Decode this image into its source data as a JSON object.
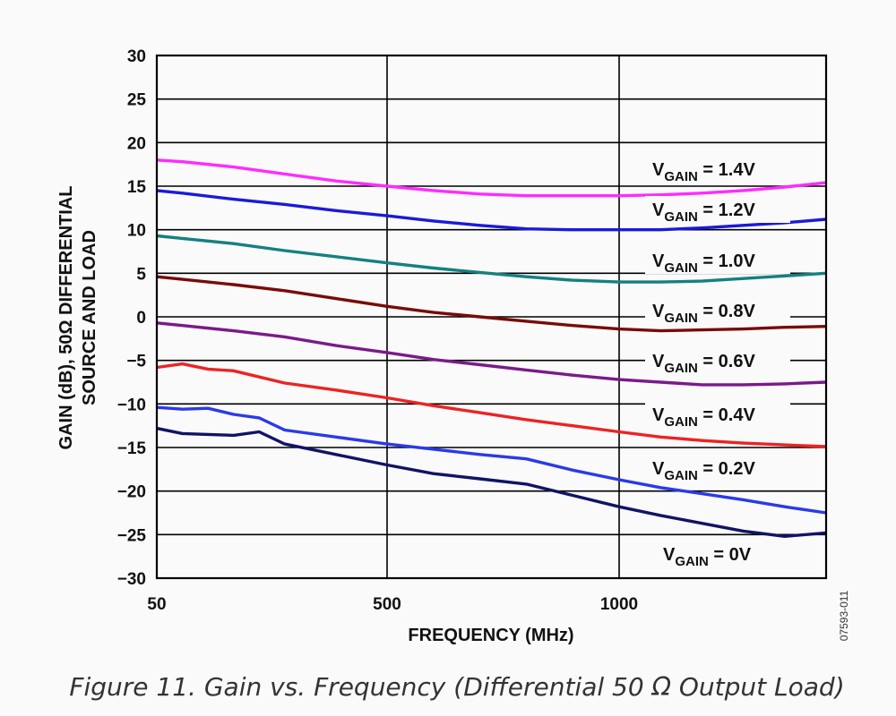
{
  "figure": {
    "caption": "Figure 11. Gain vs. Frequency (Differential 50 Ω  Output Load)",
    "doc_id": "07593-011"
  },
  "colors": {
    "background": "#fafafa",
    "grid": "#000000",
    "text": "#111111"
  },
  "chart_data": {
    "type": "line",
    "title": "",
    "xlabel": "FREQUENCY (MHz)",
    "ylabel_lines": [
      "GAIN (dB), 50Ω DIFFERENTIAL",
      "SOURCE AND LOAD"
    ],
    "xlim": [
      50,
      1500
    ],
    "ylim": [
      -30,
      30
    ],
    "x_ticks": [
      50,
      500,
      1000
    ],
    "y_ticks": [
      30,
      25,
      20,
      15,
      10,
      5,
      0,
      -5,
      -10,
      -15,
      -20,
      -25,
      -30
    ],
    "y_tick_labels": [
      "30",
      "25",
      "20",
      "15",
      "10",
      "5",
      "0",
      "−5",
      "−10",
      "−15",
      "−20",
      "−25",
      "−30"
    ],
    "grid": true,
    "legend": "inline labels on right",
    "series": [
      {
        "label_main": "V",
        "label_sub": "GAIN",
        "label_rest": " = 1.4V",
        "color": "#ff2bff",
        "x": [
          50,
          100,
          200,
          300,
          400,
          500,
          600,
          700,
          800,
          900,
          1000,
          1100,
          1200,
          1300,
          1400,
          1500
        ],
        "y": [
          18,
          17.8,
          17.2,
          16.4,
          15.6,
          15,
          14.5,
          14.1,
          13.9,
          13.9,
          13.9,
          14,
          14.2,
          14.5,
          14.9,
          15.4
        ]
      },
      {
        "label_main": "V",
        "label_sub": "GAIN",
        "label_rest": " = 1.2V",
        "color": "#1a1adb",
        "x": [
          50,
          100,
          200,
          300,
          400,
          500,
          600,
          700,
          800,
          900,
          1000,
          1100,
          1200,
          1300,
          1400,
          1500
        ],
        "y": [
          14.5,
          14.2,
          13.5,
          12.9,
          12.2,
          11.6,
          11,
          10.5,
          10.1,
          10,
          10,
          10,
          10.2,
          10.5,
          10.8,
          11.2
        ]
      },
      {
        "label_main": "V",
        "label_sub": "GAIN",
        "label_rest": " = 1.0V",
        "color": "#148080",
        "x": [
          50,
          100,
          200,
          300,
          400,
          500,
          600,
          700,
          800,
          900,
          1000,
          1100,
          1200,
          1300,
          1400,
          1500
        ],
        "y": [
          9.3,
          9,
          8.4,
          7.6,
          6.9,
          6.2,
          5.6,
          5.1,
          4.6,
          4.2,
          4,
          4,
          4.1,
          4.4,
          4.7,
          5
        ]
      },
      {
        "label_main": "V",
        "label_sub": "GAIN",
        "label_rest": " = 0.8V",
        "color": "#7a0a0a",
        "x": [
          50,
          100,
          200,
          300,
          400,
          500,
          600,
          700,
          800,
          900,
          1000,
          1100,
          1200,
          1300,
          1400,
          1500
        ],
        "y": [
          4.6,
          4.3,
          3.7,
          3,
          2.1,
          1.2,
          0.5,
          0,
          -0.5,
          -1,
          -1.4,
          -1.6,
          -1.5,
          -1.4,
          -1.2,
          -1.1
        ]
      },
      {
        "label_main": "V",
        "label_sub": "GAIN",
        "label_rest": " = 0.6V",
        "color": "#7a1a8a",
        "x": [
          50,
          100,
          200,
          300,
          400,
          500,
          600,
          700,
          800,
          900,
          1000,
          1100,
          1200,
          1300,
          1400,
          1500
        ],
        "y": [
          -0.7,
          -1,
          -1.6,
          -2.3,
          -3.3,
          -4.1,
          -4.9,
          -5.5,
          -6.1,
          -6.7,
          -7.2,
          -7.5,
          -7.8,
          -7.8,
          -7.7,
          -7.5
        ]
      },
      {
        "label_main": "V",
        "label_sub": "GAIN",
        "label_rest": " = 0.4V",
        "color": "#ee2222",
        "x": [
          50,
          100,
          150,
          200,
          300,
          400,
          500,
          600,
          700,
          800,
          900,
          1000,
          1100,
          1200,
          1300,
          1400,
          1500
        ],
        "y": [
          -5.8,
          -5.4,
          -6,
          -6.2,
          -7.6,
          -8.4,
          -9.3,
          -10.2,
          -11,
          -11.8,
          -12.5,
          -13.2,
          -13.8,
          -14.2,
          -14.5,
          -14.7,
          -14.9
        ]
      },
      {
        "label_main": "V",
        "label_sub": "GAIN",
        "label_rest": " = 0.2V",
        "color": "#2a3ae8",
        "x": [
          50,
          100,
          150,
          200,
          250,
          300,
          400,
          500,
          600,
          700,
          800,
          900,
          1000,
          1100,
          1200,
          1300,
          1400,
          1500
        ],
        "y": [
          -10.4,
          -10.6,
          -10.5,
          -11.2,
          -11.6,
          -13,
          -13.8,
          -14.6,
          -15.2,
          -15.8,
          -16.3,
          -17.6,
          -18.7,
          -19.6,
          -20.3,
          -21,
          -21.8,
          -22.5
        ]
      },
      {
        "label_main": "V",
        "label_sub": "GAIN",
        "label_rest": " = 0V",
        "color": "#101466",
        "x": [
          50,
          100,
          150,
          200,
          250,
          300,
          400,
          500,
          600,
          700,
          800,
          900,
          1000,
          1100,
          1200,
          1300,
          1400,
          1500
        ],
        "y": [
          -12.8,
          -13.4,
          -13.5,
          -13.6,
          -13.2,
          -14.6,
          -15.8,
          -17,
          -18,
          -18.6,
          -19.2,
          -20.5,
          -21.8,
          -22.8,
          -23.7,
          -24.6,
          -25.2,
          -24.8
        ]
      }
    ]
  }
}
